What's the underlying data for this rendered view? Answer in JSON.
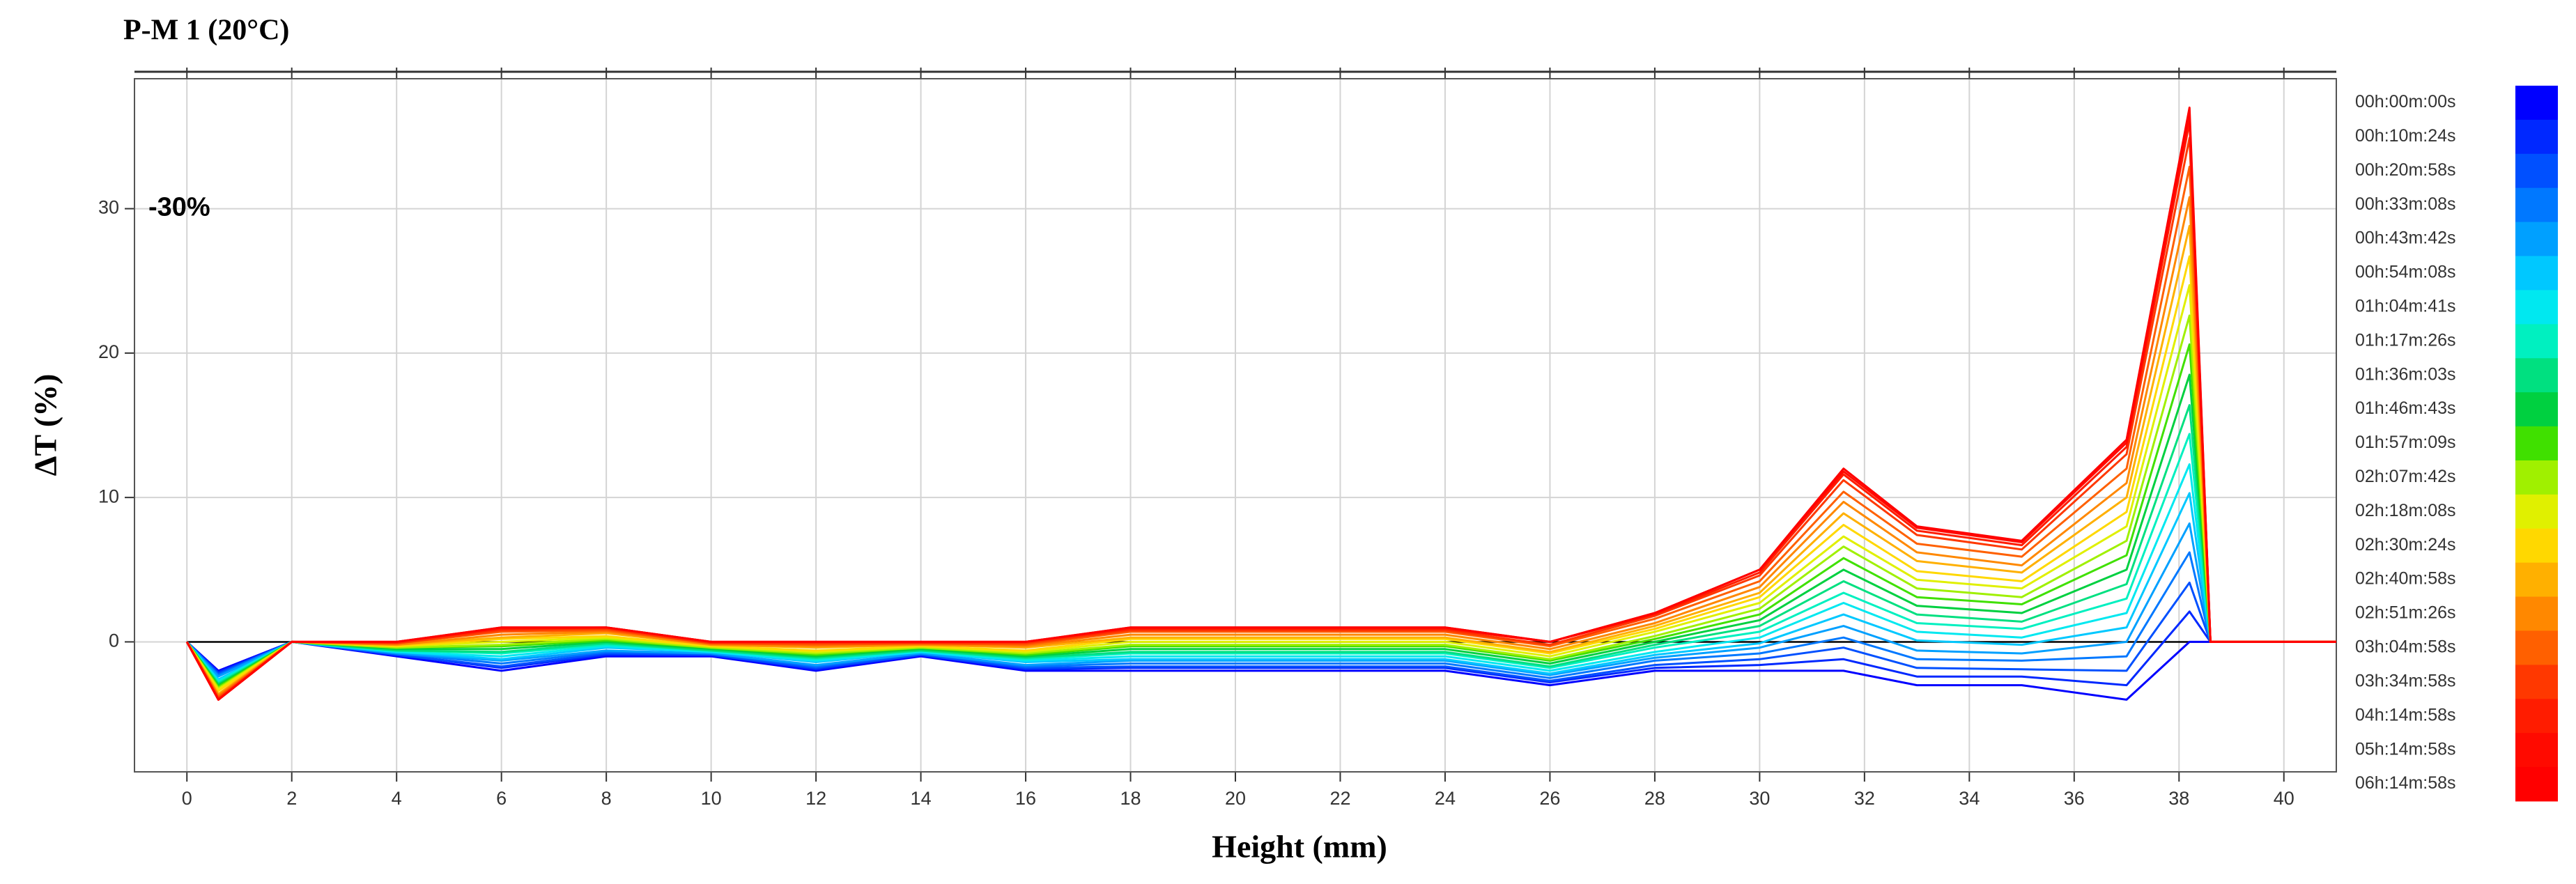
{
  "chart_data": {
    "type": "line",
    "title": "P-M 1 (20°C)",
    "x_label": "Height (mm)",
    "y_label": "ΔT (%)",
    "annotation": {
      "text": "-30%",
      "y": 30
    },
    "xlim": [
      -1,
      41
    ],
    "ylim": [
      -9,
      39
    ],
    "xticks": [
      0,
      2,
      4,
      6,
      8,
      10,
      12,
      14,
      16,
      18,
      20,
      22,
      24,
      26,
      28,
      30,
      32,
      34,
      36,
      38,
      40
    ],
    "yticks": [
      0,
      10,
      20,
      30
    ],
    "grid": true,
    "x": [
      0,
      0.6,
      2,
      4,
      6,
      8,
      10,
      12,
      14,
      16,
      18,
      20,
      22,
      24,
      26,
      28,
      30,
      31.6,
      33,
      35,
      37,
      38.2,
      38.6,
      41
    ],
    "series": [
      {
        "name": "00h:00m:00s",
        "color": "#0000ff",
        "values": [
          0,
          -2,
          0,
          -1,
          -2,
          -1,
          -1,
          -2,
          -1,
          -2,
          -2,
          -2,
          -2,
          -2,
          -3,
          -2,
          -2,
          -2,
          -3,
          -3,
          -4,
          0,
          0,
          0
        ]
      },
      {
        "name": "00h:10m:24s",
        "color": "#0028ff",
        "values": [
          0,
          -2.1,
          0,
          -0.9,
          -1.8,
          -0.9,
          -0.9,
          -1.9,
          -0.9,
          -1.9,
          -1.8,
          -1.8,
          -1.8,
          -1.8,
          -2.8,
          -1.8,
          -1.6,
          -1.2,
          -2.4,
          -2.4,
          -3,
          2.1,
          0,
          0
        ]
      },
      {
        "name": "00h:20m:58s",
        "color": "#0050ff",
        "values": [
          0,
          -2.2,
          0,
          -0.9,
          -1.7,
          -0.8,
          -0.9,
          -1.8,
          -0.9,
          -1.8,
          -1.7,
          -1.7,
          -1.7,
          -1.7,
          -2.7,
          -1.6,
          -1.2,
          -0.4,
          -1.8,
          -1.9,
          -2,
          4.1,
          0,
          0
        ]
      },
      {
        "name": "00h:33m:08s",
        "color": "#0078ff",
        "values": [
          0,
          -2.3,
          0,
          -0.8,
          -1.5,
          -0.7,
          -0.8,
          -1.7,
          -0.8,
          -1.7,
          -1.5,
          -1.5,
          -1.5,
          -1.5,
          -2.5,
          -1.3,
          -0.8,
          0.3,
          -1.2,
          -1.3,
          -1,
          6.2,
          0,
          0
        ]
      },
      {
        "name": "00h:43m:42s",
        "color": "#00a0ff",
        "values": [
          0,
          -2.4,
          0,
          -0.8,
          -1.3,
          -0.6,
          -0.8,
          -1.6,
          -0.8,
          -1.6,
          -1.3,
          -1.3,
          -1.3,
          -1.3,
          -2.3,
          -1.1,
          -0.4,
          1.1,
          -0.6,
          -0.8,
          0,
          8.2,
          0,
          0
        ]
      },
      {
        "name": "00h:54m:08s",
        "color": "#00c8ff",
        "values": [
          0,
          -2.6,
          0,
          -0.7,
          -1.2,
          -0.4,
          -0.7,
          -1.4,
          -0.7,
          -1.4,
          -1.2,
          -1.2,
          -1.2,
          -1.2,
          -2.2,
          -0.9,
          -0.1,
          1.9,
          0.1,
          -0.2,
          1,
          10.3,
          0,
          0
        ]
      },
      {
        "name": "01h:04m:41s",
        "color": "#00e8f0",
        "values": [
          0,
          -2.7,
          0,
          -0.7,
          -1,
          -0.3,
          -0.7,
          -1.3,
          -0.7,
          -1.3,
          -1,
          -1,
          -1,
          -1,
          -2,
          -0.7,
          0.3,
          2.7,
          0.7,
          0.3,
          2,
          12.3,
          0,
          0
        ]
      },
      {
        "name": "01h:17m:26s",
        "color": "#00f0c0",
        "values": [
          0,
          -2.8,
          0,
          -0.6,
          -0.8,
          -0.2,
          -0.6,
          -1.2,
          -0.6,
          -1.2,
          -0.8,
          -0.8,
          -0.8,
          -0.8,
          -1.8,
          -0.4,
          0.7,
          3.4,
          1.3,
          0.9,
          3,
          14.4,
          0,
          0
        ]
      },
      {
        "name": "01h:36m:03s",
        "color": "#00e080",
        "values": [
          0,
          -2.9,
          0,
          -0.6,
          -0.7,
          -0.1,
          -0.6,
          -1.1,
          -0.6,
          -1.1,
          -0.7,
          -0.7,
          -0.7,
          -0.7,
          -1.7,
          -0.2,
          1.1,
          4.2,
          1.9,
          1.4,
          4,
          16.4,
          0,
          0
        ]
      },
      {
        "name": "01h:46m:43s",
        "color": "#00d040",
        "values": [
          0,
          -3,
          0,
          -0.5,
          -0.5,
          0,
          -0.5,
          -1,
          -0.5,
          -1,
          -0.5,
          -0.5,
          -0.5,
          -0.5,
          -1.5,
          0,
          1.5,
          5,
          2.5,
          2,
          5,
          18.5,
          0,
          0
        ]
      },
      {
        "name": "01h:57m:09s",
        "color": "#40e000",
        "values": [
          0,
          -3.1,
          0,
          -0.4,
          -0.3,
          0.1,
          -0.4,
          -0.9,
          -0.4,
          -0.9,
          -0.3,
          -0.3,
          -0.3,
          -0.3,
          -1.3,
          0.2,
          1.9,
          5.8,
          3.1,
          2.6,
          6,
          20.6,
          0,
          0
        ]
      },
      {
        "name": "02h:07m:42s",
        "color": "#a0f000",
        "values": [
          0,
          -3.2,
          0,
          -0.4,
          -0.2,
          0.2,
          -0.4,
          -0.8,
          -0.4,
          -0.8,
          -0.2,
          -0.2,
          -0.2,
          -0.2,
          -1.2,
          0.4,
          2.3,
          6.6,
          3.7,
          3.1,
          7,
          22.6,
          0,
          0
        ]
      },
      {
        "name": "02h:18m:08s",
        "color": "#e0f000",
        "values": [
          0,
          -3.3,
          0,
          -0.3,
          0,
          0.3,
          -0.3,
          -0.7,
          -0.3,
          -0.7,
          0,
          0,
          0,
          0,
          -1,
          0.7,
          2.7,
          7.3,
          4.3,
          3.7,
          8,
          24.7,
          0,
          0
        ]
      },
      {
        "name": "02h:30m:24s",
        "color": "#ffd800",
        "values": [
          0,
          -3.4,
          0,
          -0.3,
          0.2,
          0.4,
          -0.3,
          -0.6,
          -0.3,
          -0.6,
          0.2,
          0.2,
          0.2,
          0.2,
          -0.8,
          0.9,
          3.1,
          8.1,
          4.9,
          4.2,
          9,
          26.7,
          0,
          0
        ]
      },
      {
        "name": "02h:40m:58s",
        "color": "#ffb000",
        "values": [
          0,
          -3.6,
          0,
          -0.2,
          0.3,
          0.6,
          -0.2,
          -0.4,
          -0.2,
          -0.4,
          0.3,
          0.3,
          0.3,
          0.3,
          -0.7,
          1.1,
          3.4,
          8.9,
          5.6,
          4.8,
          10,
          28.8,
          0,
          0
        ]
      },
      {
        "name": "02h:51m:26s",
        "color": "#ff8800",
        "values": [
          0,
          -3.7,
          0,
          -0.2,
          0.5,
          0.7,
          -0.2,
          -0.3,
          -0.2,
          -0.3,
          0.5,
          0.5,
          0.5,
          0.5,
          -0.5,
          1.3,
          3.8,
          9.7,
          6.2,
          5.3,
          11,
          30.8,
          0,
          0
        ]
      },
      {
        "name": "03h:04m:58s",
        "color": "#ff6000",
        "values": [
          0,
          -3.8,
          0,
          -0.1,
          0.7,
          0.8,
          -0.1,
          -0.2,
          -0.1,
          -0.2,
          0.7,
          0.7,
          0.7,
          0.7,
          -0.3,
          1.6,
          4.2,
          10.4,
          6.8,
          5.9,
          12,
          32.9,
          0,
          0
        ]
      },
      {
        "name": "03h:34m:58s",
        "color": "#ff3800",
        "values": [
          0,
          -3.9,
          0,
          -0.1,
          0.8,
          0.9,
          -0.1,
          -0.1,
          -0.1,
          -0.1,
          0.8,
          0.8,
          0.8,
          0.8,
          -0.2,
          1.8,
          4.6,
          11.2,
          7.4,
          6.4,
          13,
          34.9,
          0,
          0
        ]
      },
      {
        "name": "04h:14m:58s",
        "color": "#ff1c00",
        "values": [
          0,
          -4,
          0,
          0,
          0.9,
          1,
          0,
          0,
          0,
          0,
          0.9,
          0.9,
          0.9,
          0.9,
          0,
          1.9,
          4.8,
          11.6,
          7.7,
          6.7,
          13.5,
          36,
          0,
          0
        ]
      },
      {
        "name": "05h:14m:58s",
        "color": "#ff0a00",
        "values": [
          0,
          -4,
          0,
          0,
          1,
          1,
          0,
          0,
          0,
          0,
          1,
          1,
          1,
          1,
          0,
          2,
          5,
          11.8,
          7.9,
          6.9,
          13.8,
          36.5,
          0,
          0
        ]
      },
      {
        "name": "06h:14m:58s",
        "color": "#ff0000",
        "values": [
          0,
          -4,
          0,
          0,
          1,
          1,
          0,
          0,
          0,
          0,
          1,
          1,
          1,
          1,
          0,
          2,
          5,
          12,
          8,
          7,
          14,
          37,
          0,
          0
        ]
      }
    ]
  }
}
